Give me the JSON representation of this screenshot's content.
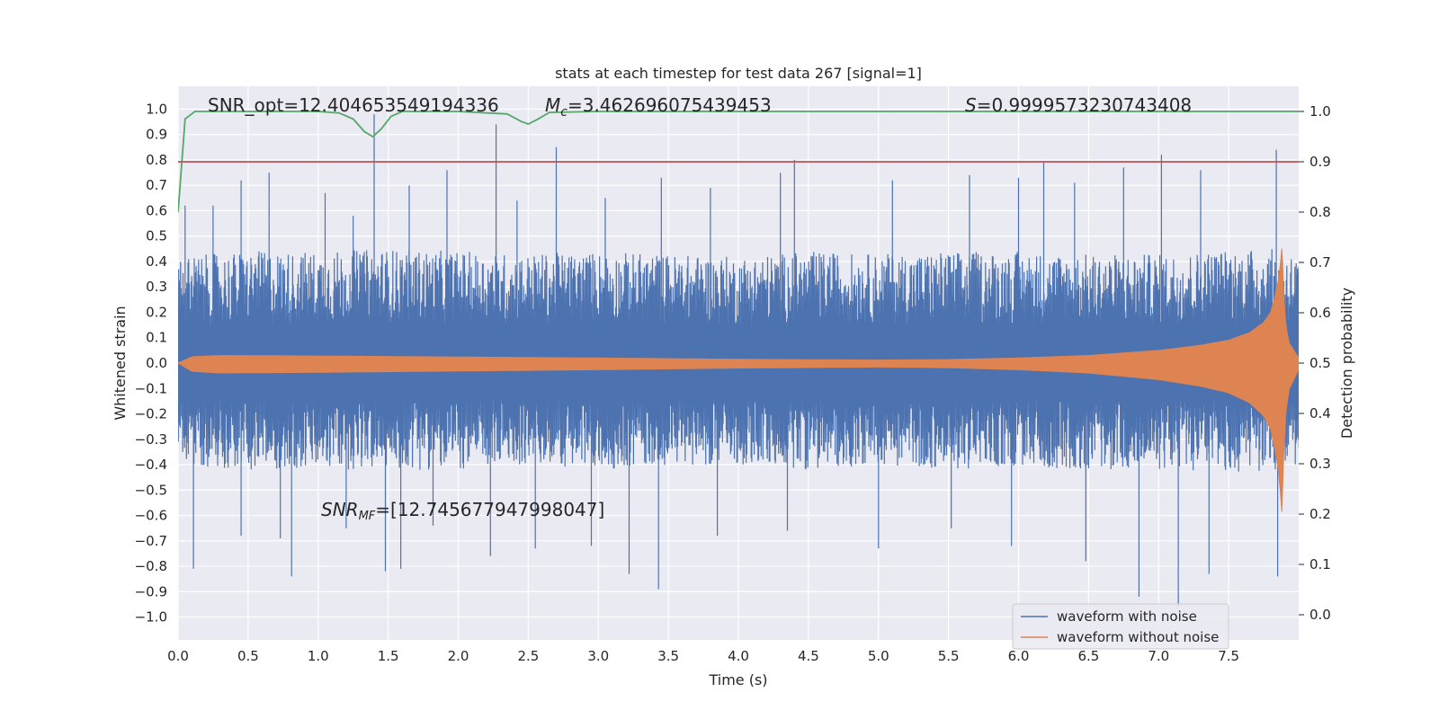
{
  "chart_data": {
    "type": "line",
    "title": "stats at each timestep for test data 267 [signal=1]",
    "xlabel": "Time (s)",
    "ylabel": "Whitened strain",
    "y2label": "Detection probability",
    "xlim": [
      0.0,
      8.0
    ],
    "ylim": [
      -1.09,
      1.09
    ],
    "y2lim": [
      -0.05,
      1.05
    ],
    "xticks": [
      "0.0",
      "0.5",
      "1.0",
      "1.5",
      "2.0",
      "2.5",
      "3.0",
      "3.5",
      "4.0",
      "4.5",
      "5.0",
      "5.5",
      "6.0",
      "6.5",
      "7.0",
      "7.5"
    ],
    "yticks": [
      "1.0",
      "0.9",
      "0.8",
      "0.7",
      "0.6",
      "0.5",
      "0.4",
      "0.3",
      "0.2",
      "0.1",
      "0.0",
      "−0.1",
      "−0.2",
      "−0.3",
      "−0.4",
      "−0.5",
      "−0.6",
      "−0.7",
      "−0.8",
      "−0.9",
      "−1.0"
    ],
    "y2ticks": [
      "1.0",
      "0.9",
      "0.8",
      "0.7",
      "0.6",
      "0.5",
      "0.4",
      "0.3",
      "0.2",
      "0.1",
      "0.0"
    ],
    "grid": true,
    "legend_position": "lower-right",
    "annotations": {
      "snr_opt": "SNR_opt=12.404653549194336",
      "mc_symbol": "M",
      "mc_sub": "c",
      "mc_value": "=3.462696075439453",
      "s_symbol": "S",
      "s_value": "=0.9999573230743408",
      "snr_mf_symbol": "SNR",
      "snr_mf_sub": "MF",
      "snr_mf_value": "=[12.745677947998047]"
    },
    "series": [
      {
        "name": "waveform with noise",
        "color": "#4c72b0",
        "axis": "left",
        "envelope_t": [
          0.0,
          0.5,
          1.0,
          1.5,
          2.0,
          2.5,
          3.0,
          3.5,
          4.0,
          4.5,
          5.0,
          5.5,
          6.0,
          6.5,
          7.0,
          7.5,
          7.9,
          8.0
        ],
        "envelope_upper": [
          0.42,
          0.44,
          0.44,
          0.45,
          0.44,
          0.43,
          0.44,
          0.43,
          0.42,
          0.44,
          0.43,
          0.44,
          0.44,
          0.43,
          0.43,
          0.45,
          0.45,
          0.42
        ],
        "envelope_lower": [
          -0.4,
          -0.42,
          -0.42,
          -0.42,
          -0.42,
          -0.4,
          -0.42,
          -0.4,
          -0.4,
          -0.42,
          -0.4,
          -0.42,
          -0.41,
          -0.42,
          -0.42,
          -0.43,
          -0.43,
          -0.4
        ],
        "spikes": [
          [
            0.05,
            0.62
          ],
          [
            0.25,
            0.62
          ],
          [
            0.45,
            0.72
          ],
          [
            0.65,
            0.75
          ],
          [
            1.05,
            0.67
          ],
          [
            1.25,
            0.58
          ],
          [
            1.4,
            0.98
          ],
          [
            1.65,
            0.7
          ],
          [
            1.92,
            0.76
          ],
          [
            2.27,
            0.94
          ],
          [
            2.42,
            0.64
          ],
          [
            2.7,
            0.85
          ],
          [
            3.05,
            0.65
          ],
          [
            3.45,
            0.73
          ],
          [
            3.8,
            0.69
          ],
          [
            4.3,
            0.75
          ],
          [
            4.4,
            0.8
          ],
          [
            5.1,
            0.72
          ],
          [
            5.65,
            0.74
          ],
          [
            6.0,
            0.73
          ],
          [
            6.18,
            0.79
          ],
          [
            6.4,
            0.71
          ],
          [
            6.75,
            0.77
          ],
          [
            7.02,
            0.82
          ],
          [
            7.3,
            0.76
          ],
          [
            7.84,
            0.84
          ],
          [
            0.11,
            -0.81
          ],
          [
            0.45,
            -0.68
          ],
          [
            0.73,
            -0.69
          ],
          [
            0.81,
            -0.84
          ],
          [
            1.2,
            -0.65
          ],
          [
            1.48,
            -0.82
          ],
          [
            1.59,
            -0.81
          ],
          [
            1.82,
            -0.64
          ],
          [
            2.23,
            -0.76
          ],
          [
            2.55,
            -0.73
          ],
          [
            2.95,
            -0.72
          ],
          [
            3.22,
            -0.83
          ],
          [
            3.43,
            -0.89
          ],
          [
            3.85,
            -0.68
          ],
          [
            4.35,
            -0.66
          ],
          [
            5.0,
            -0.73
          ],
          [
            5.52,
            -0.65
          ],
          [
            5.95,
            -0.72
          ],
          [
            6.48,
            -0.78
          ],
          [
            6.86,
            -0.92
          ],
          [
            7.14,
            -0.96
          ],
          [
            7.36,
            -0.83
          ],
          [
            7.85,
            -0.84
          ]
        ]
      },
      {
        "name": "waveform without noise",
        "color": "#dd8452",
        "axis": "left",
        "envelope_t": [
          0.0,
          0.1,
          0.3,
          1.0,
          2.0,
          3.0,
          4.0,
          5.0,
          5.5,
          6.0,
          6.5,
          7.0,
          7.3,
          7.5,
          7.65,
          7.75,
          7.8,
          7.83,
          7.86,
          7.88,
          7.9,
          7.93,
          8.0
        ],
        "envelope_amp": [
          0.0,
          0.025,
          0.03,
          0.028,
          0.024,
          0.02,
          0.015,
          0.012,
          0.014,
          0.02,
          0.03,
          0.05,
          0.07,
          0.09,
          0.12,
          0.16,
          0.2,
          0.26,
          0.34,
          0.45,
          0.18,
          0.08,
          0.02
        ]
      },
      {
        "name": "",
        "color": "#55a868",
        "axis": "right",
        "x": [
          0.0,
          0.05,
          0.12,
          0.5,
          1.0,
          1.15,
          1.25,
          1.33,
          1.39,
          1.45,
          1.52,
          1.6,
          2.0,
          2.35,
          2.45,
          2.5,
          2.57,
          2.65,
          3.0,
          8.0
        ],
        "y": [
          0.8,
          0.985,
          1.0,
          1.0,
          1.0,
          0.997,
          0.985,
          0.96,
          0.95,
          0.965,
          0.99,
          1.0,
          1.0,
          0.995,
          0.98,
          0.975,
          0.985,
          0.998,
          1.0,
          1.0
        ]
      },
      {
        "name": "",
        "color": "#c44e52",
        "axis": "right",
        "x": [
          0.0,
          8.0
        ],
        "y": [
          0.9,
          0.9
        ]
      }
    ]
  }
}
